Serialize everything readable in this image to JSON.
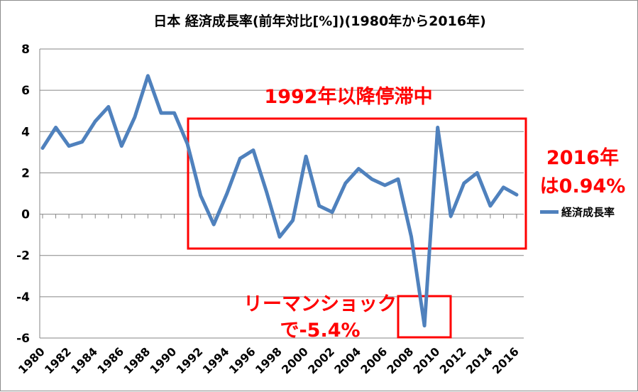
{
  "chart_data": {
    "type": "line",
    "title": "日本 経済成長率(前年対比[%])(1980年から2016年)",
    "xlabel": "",
    "ylabel": "",
    "ylim": [
      -6,
      8
    ],
    "yticks": [
      "8",
      "6",
      "4",
      "2",
      "0",
      "-2",
      "-4",
      "-6"
    ],
    "ytick_values": [
      8,
      6,
      4,
      2,
      0,
      -2,
      -4,
      -6
    ],
    "x_tick_labels": [
      "1980",
      "1982",
      "1984",
      "1986",
      "1988",
      "1990",
      "1992",
      "1994",
      "1996",
      "1998",
      "2000",
      "2002",
      "2004",
      "2006",
      "2008",
      "2010",
      "2012",
      "2014",
      "2016"
    ],
    "x": [
      1980,
      1981,
      1982,
      1983,
      1984,
      1985,
      1986,
      1987,
      1988,
      1989,
      1990,
      1991,
      1992,
      1993,
      1994,
      1995,
      1996,
      1997,
      1998,
      1999,
      2000,
      2001,
      2002,
      2003,
      2004,
      2005,
      2006,
      2007,
      2008,
      2009,
      2010,
      2011,
      2012,
      2013,
      2014,
      2015,
      2016
    ],
    "grid": "horizontal",
    "legend_position": "right",
    "series": [
      {
        "name": "経済成長率",
        "color": "#4f81bd",
        "values": [
          3.2,
          4.2,
          3.3,
          3.5,
          4.5,
          5.2,
          3.3,
          4.7,
          6.7,
          4.9,
          4.9,
          3.4,
          0.9,
          -0.5,
          1.0,
          2.7,
          3.1,
          1.1,
          -1.1,
          -0.3,
          2.8,
          0.4,
          0.1,
          1.5,
          2.2,
          1.7,
          1.4,
          1.7,
          -1.1,
          -5.4,
          4.2,
          -0.1,
          1.5,
          2.0,
          0.4,
          1.3,
          0.94
        ]
      }
    ],
    "annotations": {
      "stagnation": "1992年以降停滞中",
      "latest_line1": "2016年",
      "latest_line2": "は0.94%",
      "lehman_line1": "リーマンショック",
      "lehman_line2": "で-5.4%"
    },
    "highlight_color": "#ff0000"
  }
}
